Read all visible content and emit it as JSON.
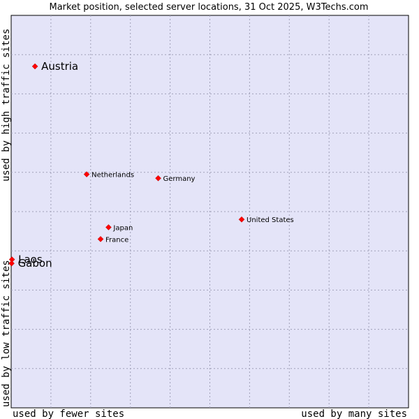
{
  "chart_data": {
    "type": "scatter",
    "title": "Market position, selected server locations, 31 Oct 2025, W3Techs.com",
    "xlabel_left": "used by fewer sites",
    "xlabel_right": "used by many sites",
    "ylabel_bottom": "used by low traffic sites",
    "ylabel_top": "used by high traffic sites",
    "xlim": [
      0,
      10
    ],
    "ylim": [
      0,
      10
    ],
    "grid": true,
    "point_color": "#ff0000",
    "background_color": "#e4e4f8",
    "points": [
      {
        "name": "Austria",
        "x": 0.6,
        "y": 8.7,
        "highlight": true
      },
      {
        "name": "Netherlands",
        "x": 1.9,
        "y": 5.95,
        "highlight": false
      },
      {
        "name": "Germany",
        "x": 3.7,
        "y": 5.85,
        "highlight": false
      },
      {
        "name": "United States",
        "x": 5.8,
        "y": 4.8,
        "highlight": false
      },
      {
        "name": "Japan",
        "x": 2.45,
        "y": 4.6,
        "highlight": false
      },
      {
        "name": "France",
        "x": 2.25,
        "y": 4.3,
        "highlight": false
      },
      {
        "name": "Laos",
        "x": 0.02,
        "y": 3.78,
        "highlight": true
      },
      {
        "name": "Gabon",
        "x": 0.01,
        "y": 3.68,
        "highlight": true
      }
    ]
  }
}
